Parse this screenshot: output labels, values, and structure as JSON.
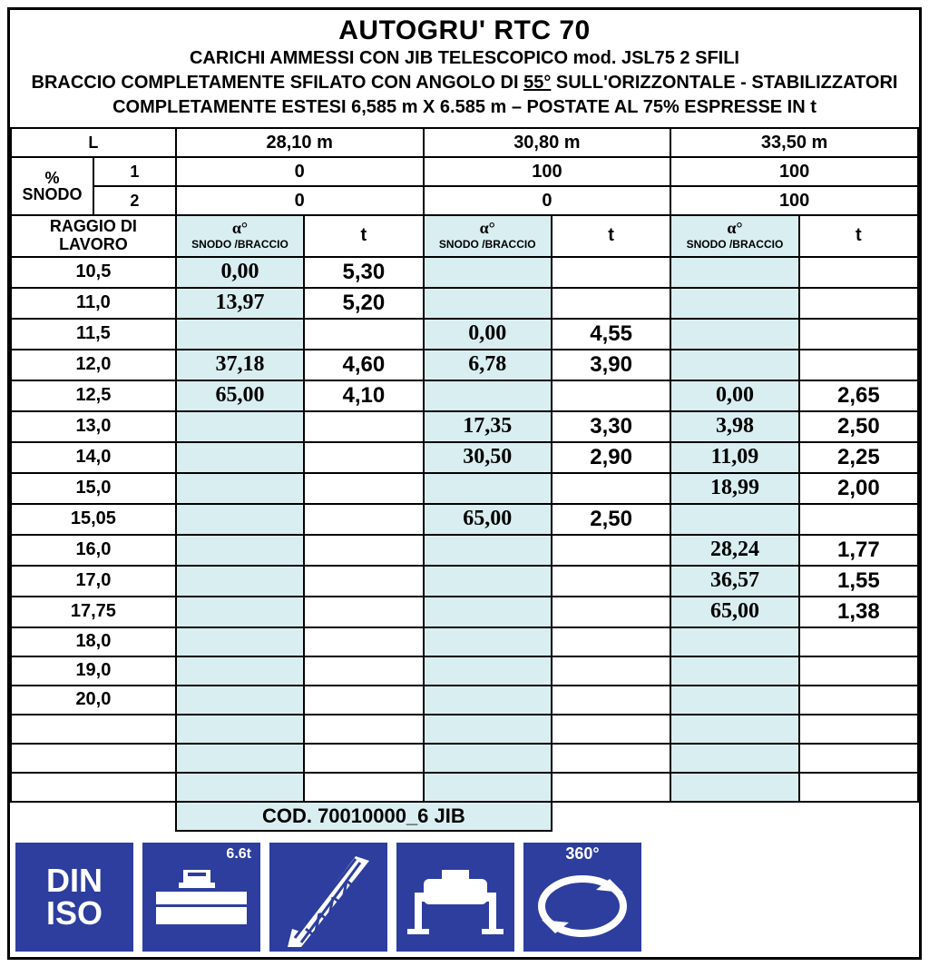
{
  "header": {
    "title": "AUTOGRU' RTC 70",
    "line1": "CARICHI AMMESSI CON JIB TELESCOPICO mod. JSL75  2 SFILI",
    "line2_a": "BRACCIO COMPLETAMENTE SFILATO CON ANGOLO DI ",
    "line2_deg": "55°",
    "line2_b": " SULL'ORIZZONTALE - STABILIZZATORI",
    "line3": "COMPLETAMENTE ESTESI 6,585 m X 6.585 m – POSTATE AL 75% ESPRESSE IN t"
  },
  "colors": {
    "highlight_bg": "#d9eef0",
    "icon_bg": "#2d3e9e",
    "border": "#000000",
    "text": "#000000"
  },
  "table": {
    "L_label": "L",
    "L_values": [
      "28,10 m",
      "30,80 m",
      "33,50 m"
    ],
    "snodo_pct_label": "% SNODO",
    "snodo_row1_label": "1",
    "snodo_row1": [
      "0",
      "100",
      "100"
    ],
    "snodo_row2_label": "2",
    "snodo_row2": [
      "0",
      "0",
      "100"
    ],
    "raggio_label": "RAGGIO DI LAVORO",
    "alpha_label": "α°",
    "alpha_sub": "SNODO /BRACCIO",
    "t_label": "t",
    "rows": [
      {
        "r": "10,5",
        "a1": "0,00",
        "t1": "5,30",
        "a2": "",
        "t2": "",
        "a3": "",
        "t3": ""
      },
      {
        "r": "11,0",
        "a1": "13,97",
        "t1": "5,20",
        "a2": "",
        "t2": "",
        "a3": "",
        "t3": ""
      },
      {
        "r": "11,5",
        "a1": "",
        "t1": "",
        "a2": "0,00",
        "t2": "4,55",
        "a3": "",
        "t3": ""
      },
      {
        "r": "12,0",
        "a1": "37,18",
        "t1": "4,60",
        "a2": "6,78",
        "t2": "3,90",
        "a3": "",
        "t3": ""
      },
      {
        "r": "12,5",
        "a1": "65,00",
        "t1": "4,10",
        "a2": "",
        "t2": "",
        "a3": "0,00",
        "t3": "2,65"
      },
      {
        "r": "13,0",
        "a1": "",
        "t1": "",
        "a2": "17,35",
        "t2": "3,30",
        "a3": "3,98",
        "t3": "2,50"
      },
      {
        "r": "14,0",
        "a1": "",
        "t1": "",
        "a2": "30,50",
        "t2": "2,90",
        "a3": "11,09",
        "t3": "2,25"
      },
      {
        "r": "15,0",
        "a1": "",
        "t1": "",
        "a2": "",
        "t2": "",
        "a3": "18,99",
        "t3": "2,00"
      },
      {
        "r": "15,05",
        "a1": "",
        "t1": "",
        "a2": "65,00",
        "t2": "2,50",
        "a3": "",
        "t3": ""
      },
      {
        "r": "16,0",
        "a1": "",
        "t1": "",
        "a2": "",
        "t2": "",
        "a3": "28,24",
        "t3": "1,77"
      },
      {
        "r": "17,0",
        "a1": "",
        "t1": "",
        "a2": "",
        "t2": "",
        "a3": "36,57",
        "t3": "1,55"
      },
      {
        "r": "17,75",
        "a1": "",
        "t1": "",
        "a2": "",
        "t2": "",
        "a3": "65,00",
        "t3": "1,38"
      },
      {
        "r": "18,0",
        "a1": "",
        "t1": "",
        "a2": "",
        "t2": "",
        "a3": "",
        "t3": ""
      },
      {
        "r": "19,0",
        "a1": "",
        "t1": "",
        "a2": "",
        "t2": "",
        "a3": "",
        "t3": ""
      },
      {
        "r": "20,0",
        "a1": "",
        "t1": "",
        "a2": "",
        "t2": "",
        "a3": "",
        "t3": ""
      },
      {
        "r": "",
        "a1": "",
        "t1": "",
        "a2": "",
        "t2": "",
        "a3": "",
        "t3": ""
      },
      {
        "r": "",
        "a1": "",
        "t1": "",
        "a2": "",
        "t2": "",
        "a3": "",
        "t3": ""
      },
      {
        "r": "",
        "a1": "",
        "t1": "",
        "a2": "",
        "t2": "",
        "a3": "",
        "t3": ""
      }
    ],
    "code": "COD. 70010000_6 JIB"
  },
  "icons": {
    "din": "DIN",
    "iso": "ISO",
    "weight": "6.6t",
    "rotation": "360°"
  }
}
